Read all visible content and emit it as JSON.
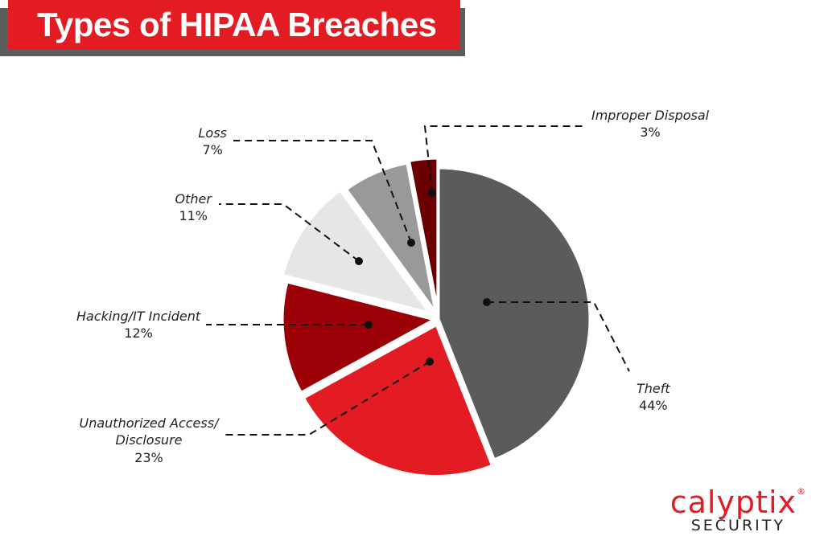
{
  "title": "Types of HIPAA Breaches",
  "brand": {
    "name": "calyptix",
    "registered": "®",
    "tagline": "SECURITY"
  },
  "chart_data": {
    "type": "pie",
    "title": "Types of HIPAA Breaches",
    "slices": [
      {
        "label": "Theft",
        "value": 44,
        "pct_label": "44%",
        "color": "#5b5b5b"
      },
      {
        "label": "Unauthorized Access/\nDisclosure",
        "value": 23,
        "pct_label": "23%",
        "color": "#e31b23"
      },
      {
        "label": "Hacking/IT Incident",
        "value": 12,
        "pct_label": "12%",
        "color": "#9c0007"
      },
      {
        "label": "Other",
        "value": 11,
        "pct_label": "11%",
        "color": "#e6e6e6"
      },
      {
        "label": "Loss",
        "value": 7,
        "pct_label": "7%",
        "color": "#999999"
      },
      {
        "label": "Improper Disposal",
        "value": 3,
        "pct_label": "3%",
        "color": "#6b0000"
      }
    ]
  }
}
